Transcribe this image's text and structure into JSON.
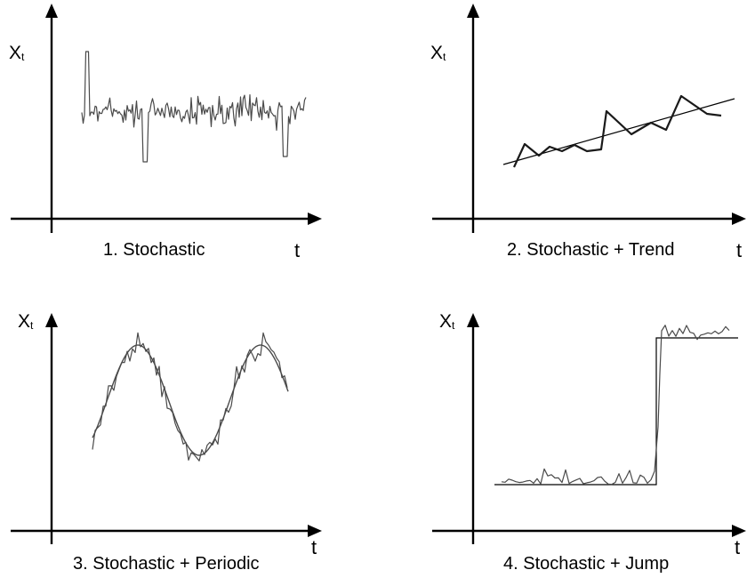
{
  "panels": [
    {
      "id": "stochastic",
      "y_label_main": "X",
      "y_label_sub": "t",
      "x_label": "t",
      "caption": "1.  Stochastic"
    },
    {
      "id": "trend",
      "y_label_main": "X",
      "y_label_sub": "t",
      "x_label": "t",
      "caption": "2.  Stochastic + Trend"
    },
    {
      "id": "periodic",
      "y_label_main": "X",
      "y_label_sub": "t",
      "x_label": "t",
      "caption": "3. Stochastic + Periodic"
    },
    {
      "id": "jump",
      "y_label_main": "X",
      "y_label_sub": "t",
      "x_label": "t",
      "caption": "4.  Stochastic + Jump"
    }
  ]
}
